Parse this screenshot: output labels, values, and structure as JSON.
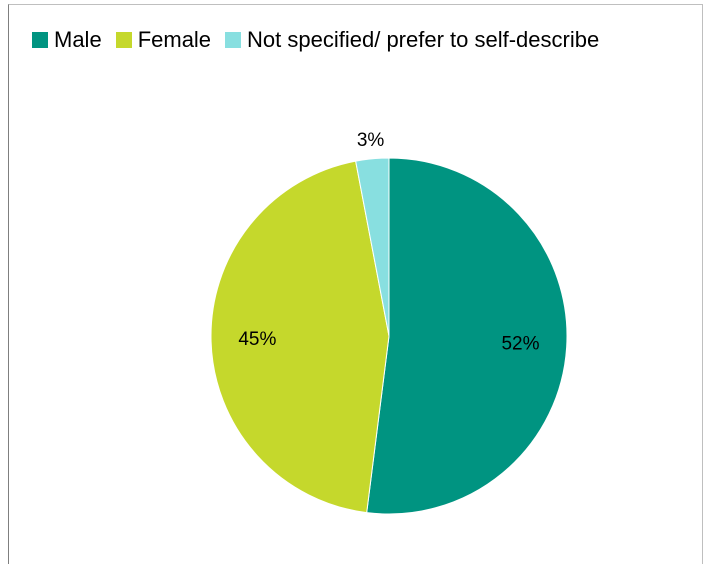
{
  "chart_data": {
    "type": "pie",
    "categories": [
      "Male",
      "Female",
      "Not specified/ prefer to self-describe"
    ],
    "values": [
      52,
      45,
      3
    ],
    "data_labels": [
      "52%",
      "45%",
      "3%"
    ],
    "colors": [
      "#009481",
      "#c5d82c",
      "#88dfe0"
    ],
    "legend_position": "top",
    "title": "",
    "start_angle": "12 o'clock",
    "direction": "clockwise"
  },
  "legend": {
    "items": [
      {
        "label": "Male",
        "color": "#009481"
      },
      {
        "label": "Female",
        "color": "#c5d82c"
      },
      {
        "label": "Not specified/ prefer to self-describe",
        "color": "#88dfe0"
      }
    ]
  }
}
